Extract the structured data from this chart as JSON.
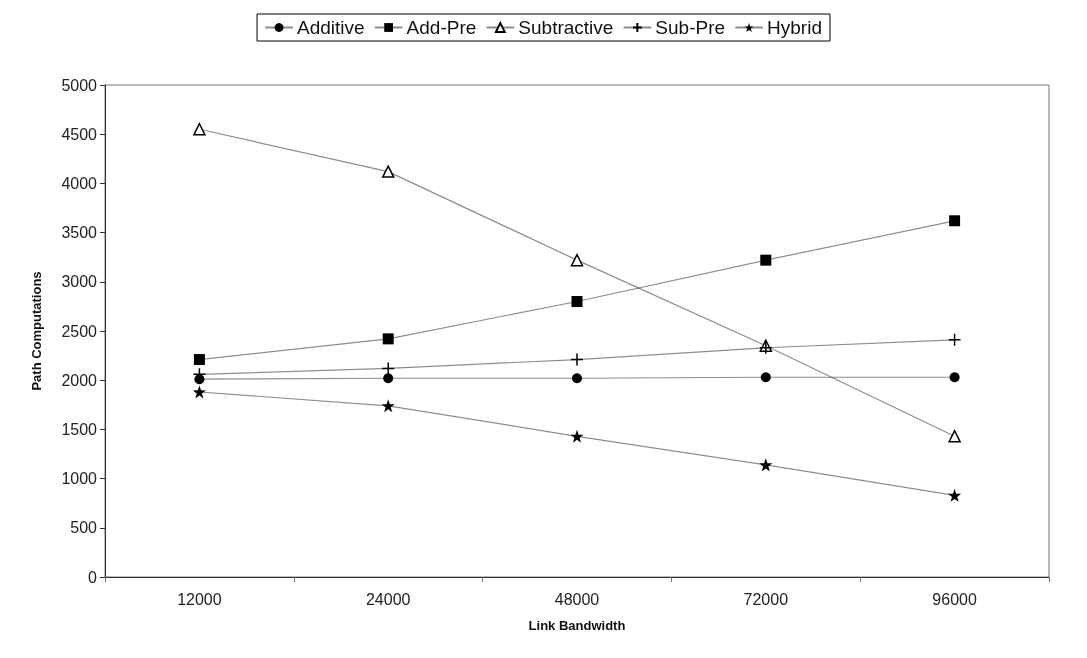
{
  "chart_data": {
    "type": "line",
    "xlabel": "Link Bandwidth",
    "ylabel": "Path Computations",
    "categories": [
      "12000",
      "24000",
      "48000",
      "72000",
      "96000"
    ],
    "ylim": [
      0,
      5000
    ],
    "yticks": [
      0,
      500,
      1000,
      1500,
      2000,
      2500,
      3000,
      3500,
      4000,
      4500,
      5000
    ],
    "grid": false,
    "legend": "top",
    "line_style": "solid",
    "series": [
      {
        "name": "Additive",
        "color": "#000000",
        "marker": "circle",
        "values": [
          2010,
          2020,
          2020,
          2030,
          2030
        ]
      },
      {
        "name": "Add-Pre",
        "color": "#000000",
        "marker": "square",
        "values": [
          2210,
          2420,
          2800,
          3220,
          3620
        ]
      },
      {
        "name": "Subtractive",
        "color": "#000000",
        "marker": "triangle",
        "values": [
          4550,
          4120,
          3220,
          2350,
          1430
        ]
      },
      {
        "name": "Sub-Pre",
        "color": "#000000",
        "marker": "cross",
        "values": [
          2060,
          2120,
          2210,
          2330,
          2410
        ]
      },
      {
        "name": "Hybrid",
        "color": "#000000",
        "marker": "star",
        "values": [
          1880,
          1740,
          1430,
          1140,
          830
        ]
      }
    ]
  }
}
